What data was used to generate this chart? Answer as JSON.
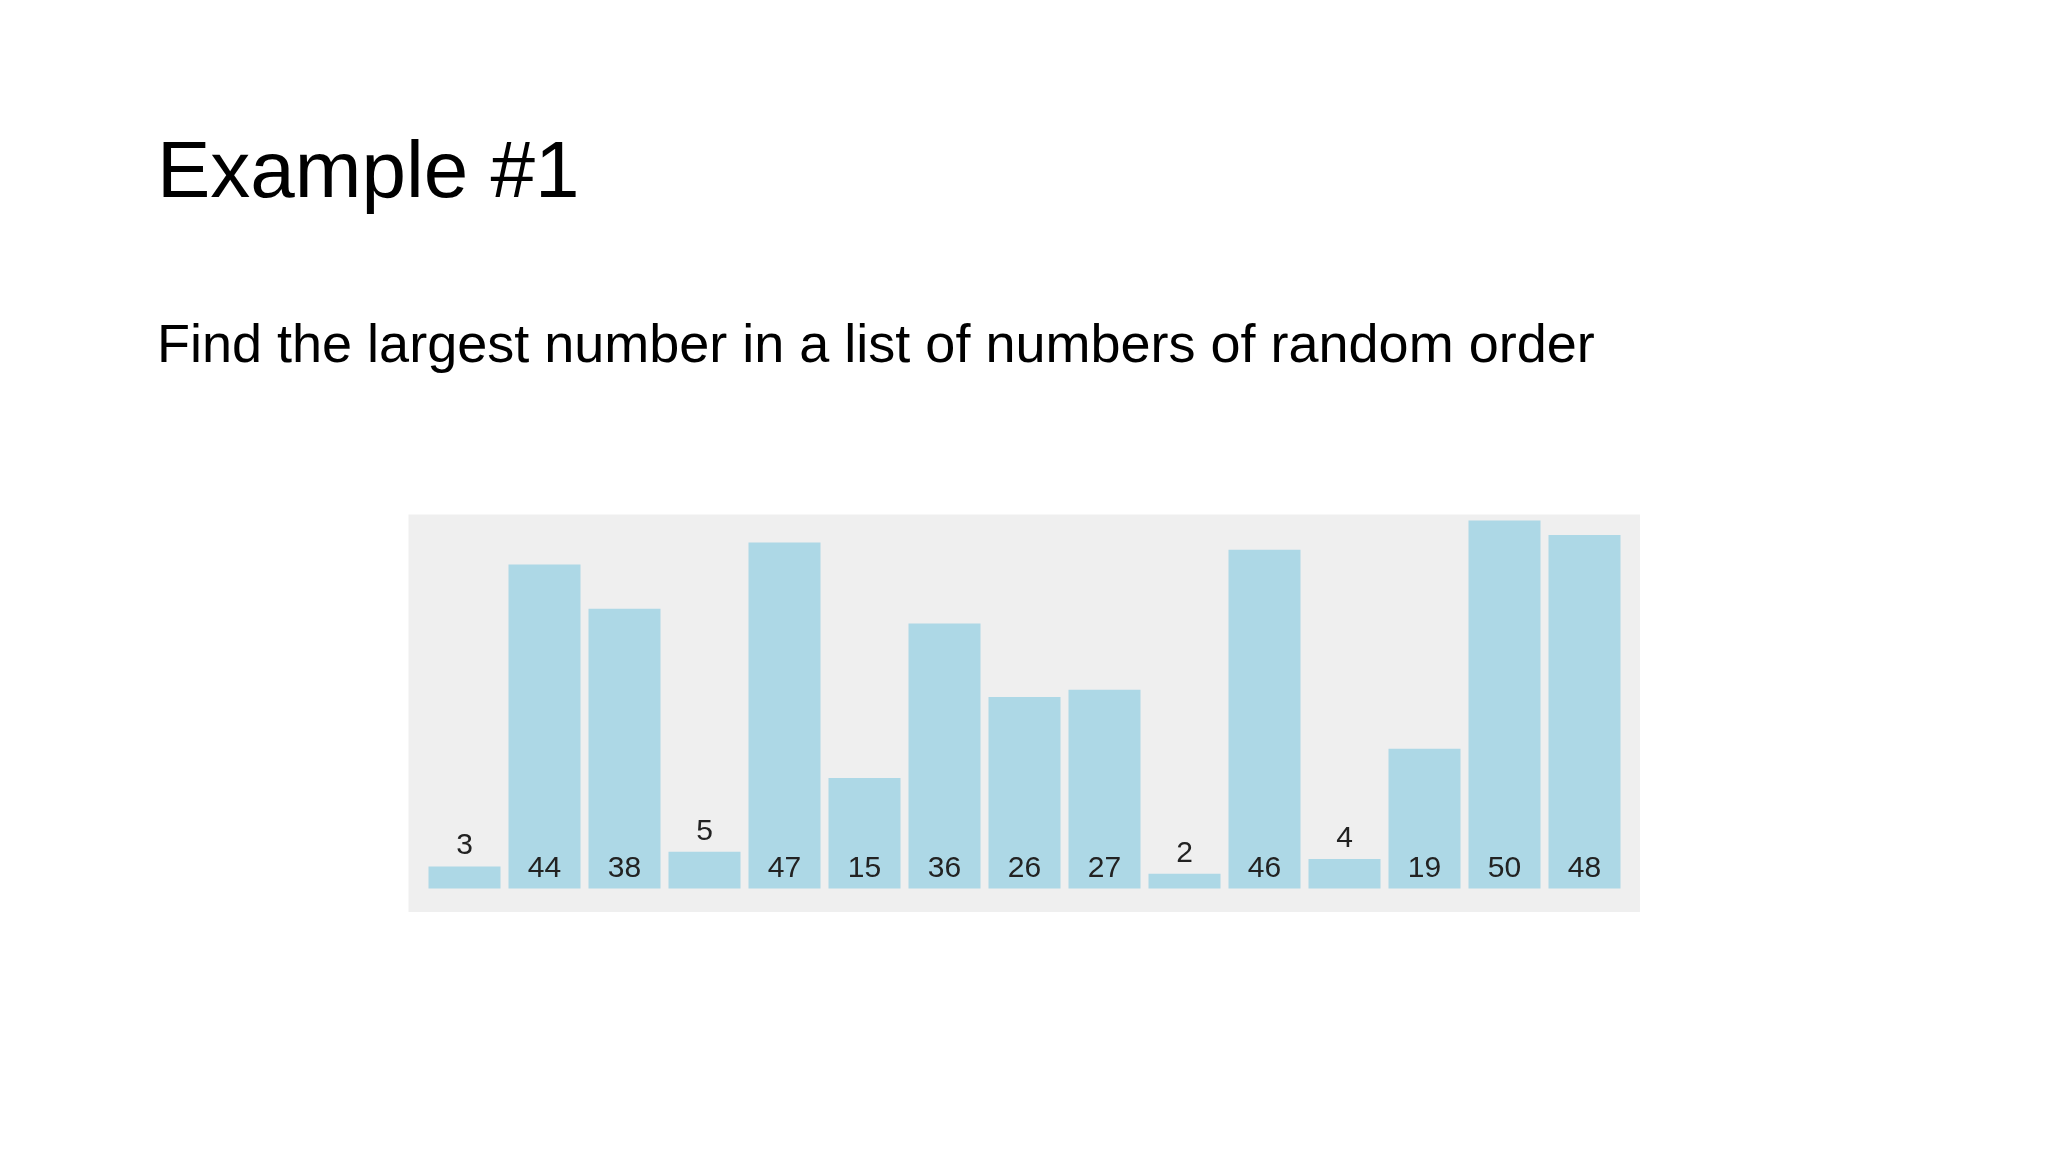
{
  "chart_data": {
    "type": "bar",
    "title": "Example #1",
    "subtitle": "Find the largest number in a list of numbers of random order",
    "categories": [
      null,
      null,
      null,
      null,
      null,
      null,
      null,
      null,
      null,
      null,
      null,
      null,
      null,
      null,
      null
    ],
    "values": [
      3,
      44,
      38,
      5,
      47,
      15,
      36,
      26,
      27,
      2,
      46,
      4,
      19,
      50,
      48
    ],
    "color": "#add8e6",
    "data_labels": true,
    "tick_labels": false
  }
}
